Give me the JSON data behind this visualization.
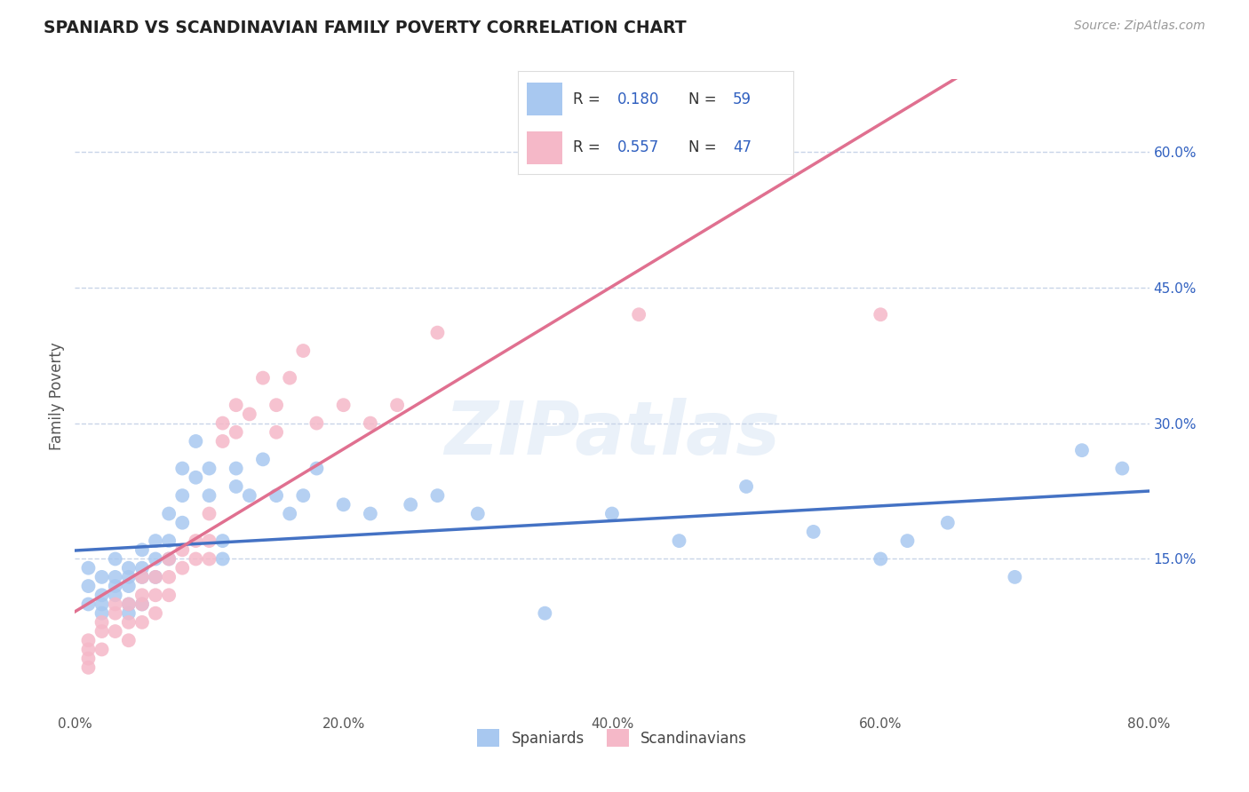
{
  "title": "SPANIARD VS SCANDINAVIAN FAMILY POVERTY CORRELATION CHART",
  "source_text": "Source: ZipAtlas.com",
  "ylabel": "Family Poverty",
  "xlim": [
    0.0,
    0.8
  ],
  "ylim": [
    -0.02,
    0.68
  ],
  "x_ticks": [
    0.0,
    0.2,
    0.4,
    0.6,
    0.8
  ],
  "x_tick_labels": [
    "0.0%",
    "20.0%",
    "40.0%",
    "60.0%",
    "80.0%"
  ],
  "y_ticks_right": [
    0.15,
    0.3,
    0.45,
    0.6
  ],
  "y_tick_labels_right": [
    "15.0%",
    "30.0%",
    "45.0%",
    "60.0%"
  ],
  "spaniard_color": "#a8c8f0",
  "scandinavian_color": "#f5b8c8",
  "spaniard_R": 0.18,
  "spaniard_N": 59,
  "scandinavian_R": 0.557,
  "scandinavian_N": 47,
  "spaniard_line_color": "#4472c4",
  "scandinavian_line_color": "#e07090",
  "dashed_line_color": "#c8b0b8",
  "watermark_text": "ZIPatlas",
  "background_color": "#ffffff",
  "grid_color": "#c8d4e8",
  "legend_R_color": "#3060c0",
  "legend_N_color": "#3060c0",
  "spaniard_scatter": {
    "x": [
      0.01,
      0.01,
      0.01,
      0.02,
      0.02,
      0.02,
      0.02,
      0.03,
      0.03,
      0.03,
      0.03,
      0.04,
      0.04,
      0.04,
      0.04,
      0.04,
      0.05,
      0.05,
      0.05,
      0.05,
      0.06,
      0.06,
      0.06,
      0.07,
      0.07,
      0.07,
      0.08,
      0.08,
      0.08,
      0.09,
      0.09,
      0.1,
      0.1,
      0.11,
      0.11,
      0.12,
      0.12,
      0.13,
      0.14,
      0.15,
      0.16,
      0.17,
      0.18,
      0.2,
      0.22,
      0.25,
      0.27,
      0.3,
      0.35,
      0.4,
      0.45,
      0.5,
      0.55,
      0.6,
      0.62,
      0.65,
      0.7,
      0.75,
      0.78
    ],
    "y": [
      0.14,
      0.12,
      0.1,
      0.13,
      0.11,
      0.1,
      0.09,
      0.13,
      0.15,
      0.12,
      0.11,
      0.14,
      0.13,
      0.12,
      0.1,
      0.09,
      0.16,
      0.14,
      0.13,
      0.1,
      0.17,
      0.15,
      0.13,
      0.2,
      0.17,
      0.15,
      0.25,
      0.22,
      0.19,
      0.28,
      0.24,
      0.25,
      0.22,
      0.17,
      0.15,
      0.25,
      0.23,
      0.22,
      0.26,
      0.22,
      0.2,
      0.22,
      0.25,
      0.21,
      0.2,
      0.21,
      0.22,
      0.2,
      0.09,
      0.2,
      0.17,
      0.23,
      0.18,
      0.15,
      0.17,
      0.19,
      0.13,
      0.27,
      0.25
    ]
  },
  "scandinavian_scatter": {
    "x": [
      0.01,
      0.01,
      0.01,
      0.01,
      0.02,
      0.02,
      0.02,
      0.03,
      0.03,
      0.03,
      0.04,
      0.04,
      0.04,
      0.05,
      0.05,
      0.05,
      0.05,
      0.06,
      0.06,
      0.06,
      0.07,
      0.07,
      0.07,
      0.08,
      0.08,
      0.09,
      0.09,
      0.1,
      0.1,
      0.1,
      0.11,
      0.11,
      0.12,
      0.12,
      0.13,
      0.14,
      0.15,
      0.15,
      0.16,
      0.17,
      0.18,
      0.2,
      0.22,
      0.24,
      0.27,
      0.42,
      0.6
    ],
    "y": [
      0.06,
      0.05,
      0.04,
      0.03,
      0.08,
      0.07,
      0.05,
      0.1,
      0.09,
      0.07,
      0.1,
      0.08,
      0.06,
      0.13,
      0.11,
      0.1,
      0.08,
      0.13,
      0.11,
      0.09,
      0.15,
      0.13,
      0.11,
      0.16,
      0.14,
      0.17,
      0.15,
      0.2,
      0.17,
      0.15,
      0.3,
      0.28,
      0.32,
      0.29,
      0.31,
      0.35,
      0.32,
      0.29,
      0.35,
      0.38,
      0.3,
      0.32,
      0.3,
      0.32,
      0.4,
      0.42,
      0.42
    ]
  }
}
